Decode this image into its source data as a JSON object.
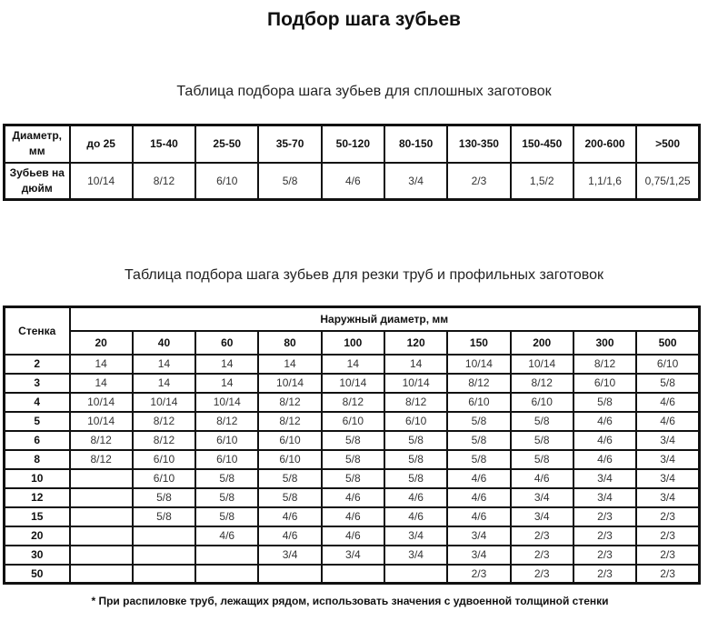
{
  "title": "Подбор шага зубьев",
  "table1": {
    "caption": "Таблица подбора шага зубьев для сплошных заготовок",
    "row_header_diameter": "Диаметр, мм",
    "row_header_teeth": "Зубьев на дюйм",
    "diameters": [
      "до 25",
      "15-40",
      "25-50",
      "35-70",
      "50-120",
      "80-150",
      "130-350",
      "150-450",
      "200-600",
      ">500"
    ],
    "teeth": [
      "10/14",
      "8/12",
      "6/10",
      "5/8",
      "4/6",
      "3/4",
      "2/3",
      "1,5/2",
      "1,1/1,6",
      "0,75/1,25"
    ]
  },
  "table2": {
    "caption": "Таблица подбора шага зубьев для резки труб и профильных заготовок",
    "wall_header": "Стенка",
    "diameter_header": "Наружный диаметр, мм",
    "diameters": [
      "20",
      "40",
      "60",
      "80",
      "100",
      "120",
      "150",
      "200",
      "300",
      "500"
    ],
    "rows": [
      {
        "wall": "2",
        "values": [
          "14",
          "14",
          "14",
          "14",
          "14",
          "14",
          "10/14",
          "10/14",
          "8/12",
          "6/10"
        ]
      },
      {
        "wall": "3",
        "values": [
          "14",
          "14",
          "14",
          "10/14",
          "10/14",
          "10/14",
          "8/12",
          "8/12",
          "6/10",
          "5/8"
        ]
      },
      {
        "wall": "4",
        "values": [
          "10/14",
          "10/14",
          "10/14",
          "8/12",
          "8/12",
          "8/12",
          "6/10",
          "6/10",
          "5/8",
          "4/6"
        ]
      },
      {
        "wall": "5",
        "values": [
          "10/14",
          "8/12",
          "8/12",
          "8/12",
          "6/10",
          "6/10",
          "5/8",
          "5/8",
          "4/6",
          "4/6"
        ]
      },
      {
        "wall": "6",
        "values": [
          "8/12",
          "8/12",
          "6/10",
          "6/10",
          "5/8",
          "5/8",
          "5/8",
          "5/8",
          "4/6",
          "3/4"
        ]
      },
      {
        "wall": "8",
        "values": [
          "8/12",
          "6/10",
          "6/10",
          "6/10",
          "5/8",
          "5/8",
          "5/8",
          "5/8",
          "4/6",
          "3/4"
        ]
      },
      {
        "wall": "10",
        "values": [
          "",
          "6/10",
          "5/8",
          "5/8",
          "5/8",
          "5/8",
          "4/6",
          "4/6",
          "3/4",
          "3/4"
        ]
      },
      {
        "wall": "12",
        "values": [
          "",
          "5/8",
          "5/8",
          "5/8",
          "4/6",
          "4/6",
          "4/6",
          "3/4",
          "3/4",
          "3/4"
        ]
      },
      {
        "wall": "15",
        "values": [
          "",
          "5/8",
          "5/8",
          "4/6",
          "4/6",
          "4/6",
          "4/6",
          "3/4",
          "2/3",
          "2/3"
        ]
      },
      {
        "wall": "20",
        "values": [
          "",
          "",
          "4/6",
          "4/6",
          "4/6",
          "3/4",
          "3/4",
          "2/3",
          "2/3",
          "2/3"
        ]
      },
      {
        "wall": "30",
        "values": [
          "",
          "",
          "",
          "3/4",
          "3/4",
          "3/4",
          "3/4",
          "2/3",
          "2/3",
          "2/3"
        ]
      },
      {
        "wall": "50",
        "values": [
          "",
          "",
          "",
          "",
          "",
          "",
          "2/3",
          "2/3",
          "2/3",
          "2/3"
        ]
      }
    ]
  },
  "note": "* При распиловке труб, лежащих рядом, использовать значения с удвоенной толщиной стенки"
}
